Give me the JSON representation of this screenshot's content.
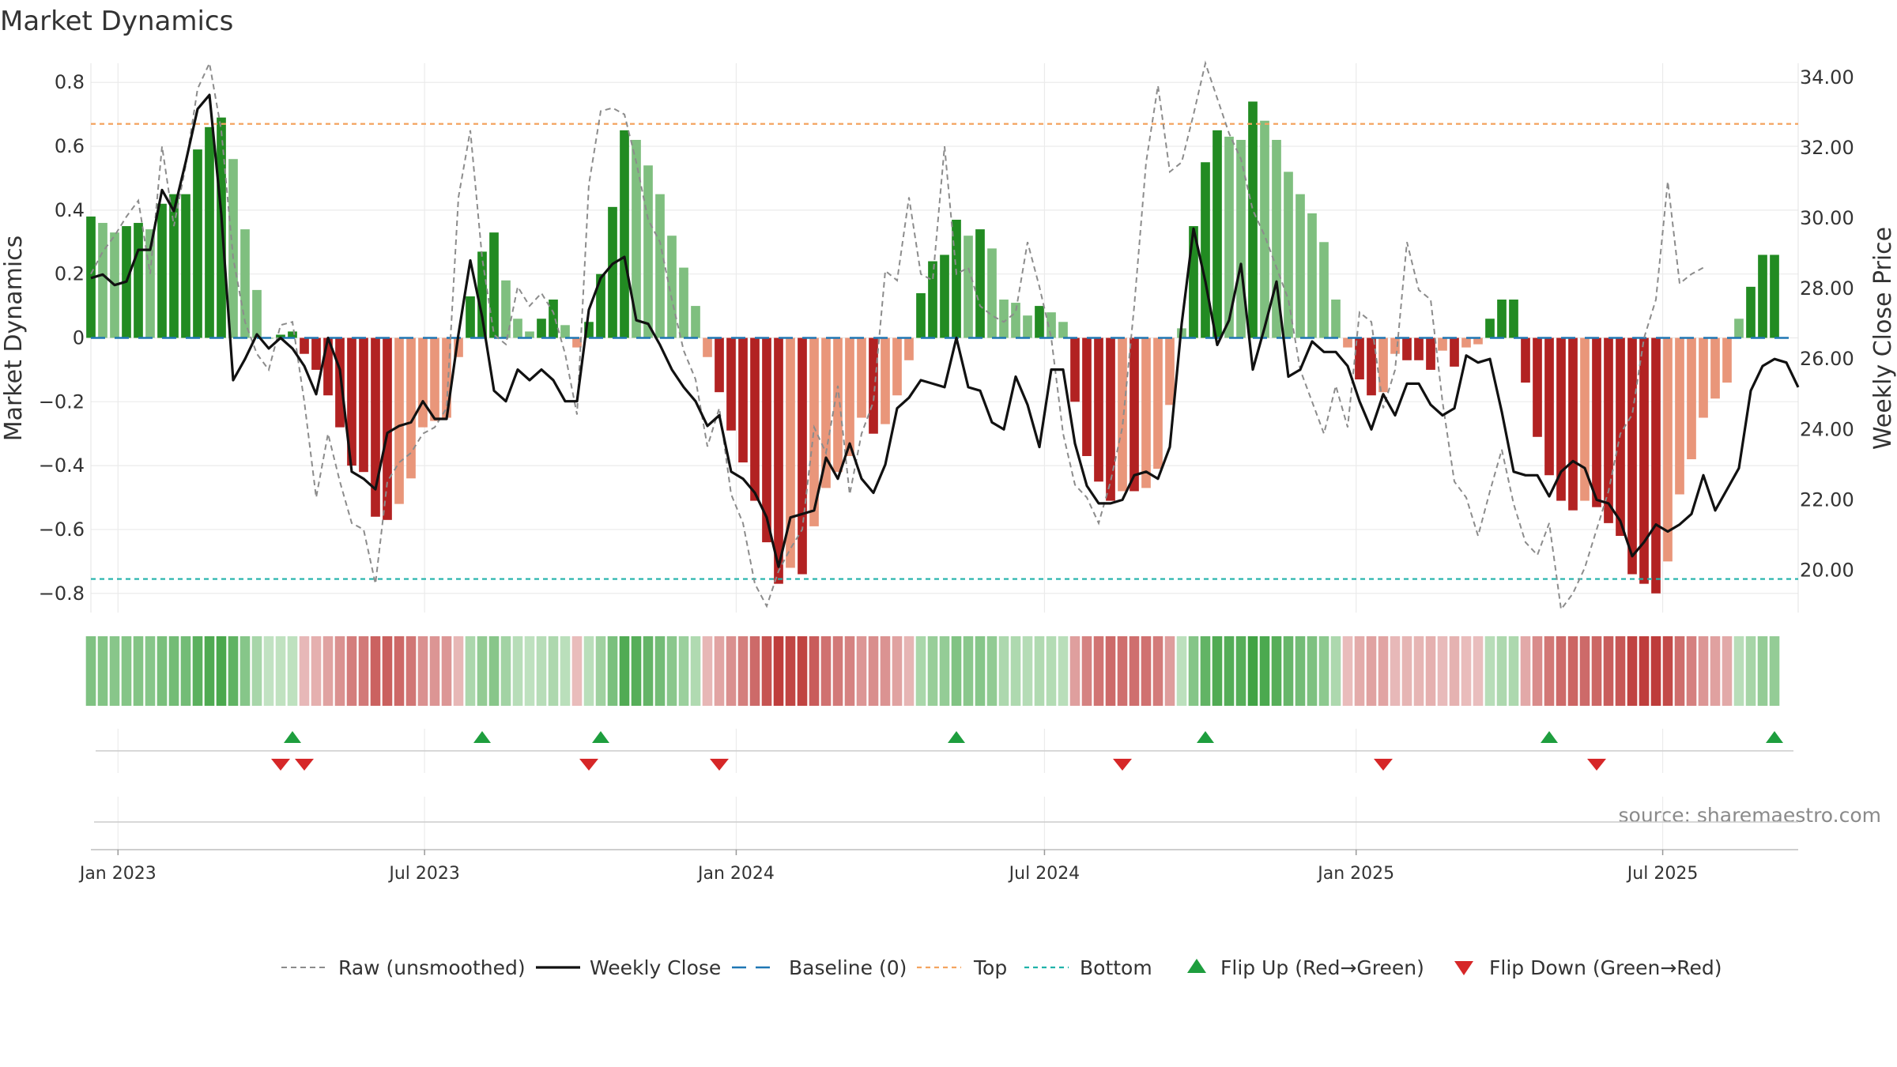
{
  "chart_data": {
    "type": "bar",
    "title": "Market Dynamics",
    "ylabel": "Market Dynamics",
    "y2label": "Weekly Close Price",
    "ylim": [
      -0.86,
      0.86
    ],
    "y2lim": [
      18.8,
      34.4
    ],
    "yticks": [
      {
        "v": 0.8,
        "label": "0.8"
      },
      {
        "v": 0.6,
        "label": "0.6"
      },
      {
        "v": 0.4,
        "label": "0.4"
      },
      {
        "v": 0.2,
        "label": "0.2"
      },
      {
        "v": 0,
        "label": "0"
      },
      {
        "v": -0.2,
        "label": "−0.2"
      },
      {
        "v": -0.4,
        "label": "−0.4"
      },
      {
        "v": -0.6,
        "label": "−0.6"
      },
      {
        "v": -0.8,
        "label": "−0.8"
      }
    ],
    "y2ticks": [
      {
        "v": 34,
        "label": "34.00"
      },
      {
        "v": 32,
        "label": "32.00"
      },
      {
        "v": 30,
        "label": "30.00"
      },
      {
        "v": 28,
        "label": "28.00"
      },
      {
        "v": 26,
        "label": "26.00"
      },
      {
        "v": 24,
        "label": "24.00"
      },
      {
        "v": 22,
        "label": "22.00"
      },
      {
        "v": 20,
        "label": "20.00"
      }
    ],
    "xticks": [
      {
        "date": "2023-01-01",
        "label": "Jan 2023"
      },
      {
        "date": "2023-07-01",
        "label": "Jul 2023"
      },
      {
        "date": "2024-01-01",
        "label": "Jan 2024"
      },
      {
        "date": "2024-07-01",
        "label": "Jul 2024"
      },
      {
        "date": "2025-01-01",
        "label": "Jan 2025"
      },
      {
        "date": "2025-07-01",
        "label": "Jul 2025"
      }
    ],
    "x_start": "2022-12-16",
    "x_end": "2025-09-19",
    "top_level": 0.67,
    "bottom_level": -0.755,
    "grid": true,
    "legend_placement": "bottom",
    "source": "source: sharemaestro.com",
    "colors": {
      "strong_up": "#228b22",
      "weak_up": "#7fbf7f",
      "strong_down": "#b22222",
      "weak_down": "#e9967a",
      "raw": "#8c8c8c",
      "close": "#111111",
      "baseline": "#1f77b4",
      "top": "#f4a460",
      "bottom": "#20b2aa",
      "flip_up": "#1e9e3e",
      "flip_down": "#d62728"
    },
    "series": [
      {
        "name": "Market Dynamics",
        "values": [
          0.38,
          0.36,
          0.33,
          0.35,
          0.36,
          0.34,
          0.42,
          0.45,
          0.45,
          0.59,
          0.66,
          0.69,
          0.56,
          0.34,
          0.15,
          0.0,
          0.01,
          0.02,
          -0.05,
          -0.1,
          -0.18,
          -0.28,
          -0.4,
          -0.42,
          -0.56,
          -0.57,
          -0.52,
          -0.44,
          -0.28,
          -0.26,
          -0.25,
          -0.06,
          0.13,
          0.27,
          0.33,
          0.18,
          0.06,
          0.02,
          0.06,
          0.12,
          0.04,
          -0.03,
          0.05,
          0.2,
          0.41,
          0.65,
          0.62,
          0.54,
          0.45,
          0.32,
          0.22,
          0.1,
          -0.06,
          -0.17,
          -0.29,
          -0.39,
          -0.51,
          -0.64,
          -0.77,
          -0.72,
          -0.74,
          -0.59,
          -0.47,
          -0.42,
          -0.37,
          -0.25,
          -0.3,
          -0.27,
          -0.18,
          -0.07,
          0.14,
          0.24,
          0.26,
          0.37,
          0.32,
          0.34,
          0.28,
          0.12,
          0.11,
          0.07,
          0.1,
          0.08,
          0.05,
          -0.2,
          -0.37,
          -0.45,
          -0.51,
          -0.48,
          -0.48,
          -0.47,
          -0.41,
          -0.21,
          0.03,
          0.35,
          0.55,
          0.65,
          0.63,
          0.62,
          0.74,
          0.68,
          0.62,
          0.52,
          0.45,
          0.39,
          0.3,
          0.12,
          -0.03,
          -0.13,
          -0.18,
          -0.17,
          -0.05,
          -0.07,
          -0.07,
          -0.1,
          -0.04,
          -0.09,
          -0.03,
          -0.02,
          0.06,
          0.12,
          0.12,
          -0.14,
          -0.31,
          -0.43,
          -0.51,
          -0.54,
          -0.51,
          -0.53,
          -0.58,
          -0.62,
          -0.74,
          -0.77,
          -0.8,
          -0.7,
          -0.49,
          -0.38,
          -0.25,
          -0.19,
          -0.14,
          0.06,
          0.16,
          0.26,
          0.26
        ]
      },
      {
        "name": "Raw (unsmoothed)",
        "values": [
          0.2,
          0.27,
          0.32,
          0.38,
          0.43,
          0.2,
          0.6,
          0.35,
          0.54,
          0.78,
          0.86,
          0.65,
          0.25,
          0.05,
          -0.05,
          -0.1,
          0.04,
          0.05,
          -0.2,
          -0.5,
          -0.3,
          -0.45,
          -0.58,
          -0.6,
          -0.77,
          -0.45,
          -0.39,
          -0.36,
          -0.3,
          -0.28,
          -0.22,
          0.44,
          0.65,
          0.25,
          0.01,
          -0.02,
          0.16,
          0.1,
          0.14,
          0.08,
          -0.05,
          -0.24,
          0.48,
          0.71,
          0.72,
          0.7,
          0.55,
          0.37,
          0.3,
          0.12,
          -0.04,
          -0.13,
          -0.34,
          -0.22,
          -0.49,
          -0.58,
          -0.77,
          -0.84,
          -0.73,
          -0.66,
          -0.6,
          -0.28,
          -0.36,
          -0.15,
          -0.49,
          -0.3,
          -0.2,
          0.21,
          0.18,
          0.44,
          0.2,
          0.18,
          0.6,
          0.2,
          0.22,
          0.1,
          0.07,
          0.05,
          0.08,
          0.3,
          0.16,
          0.0,
          -0.3,
          -0.46,
          -0.5,
          -0.58,
          -0.45,
          -0.28,
          0.1,
          0.55,
          0.79,
          0.52,
          0.55,
          0.7,
          0.86,
          0.75,
          0.64,
          0.56,
          0.4,
          0.32,
          0.22,
          0.12,
          -0.1,
          -0.2,
          -0.3,
          -0.15,
          -0.28,
          0.08,
          0.05,
          -0.22,
          -0.1,
          0.3,
          0.15,
          0.12,
          -0.2,
          -0.45,
          -0.5,
          -0.62,
          -0.48,
          -0.35,
          -0.52,
          -0.64,
          -0.68,
          -0.58,
          -0.85,
          -0.8,
          -0.72,
          -0.6,
          -0.48,
          -0.3,
          -0.24,
          0.0,
          0.12,
          0.49,
          0.17,
          0.2,
          0.22
        ]
      },
      {
        "name": "Weekly Close",
        "values": [
          28.3,
          28.4,
          28.1,
          28.2,
          29.1,
          29.1,
          30.8,
          30.2,
          31.6,
          33.1,
          33.5,
          30.1,
          25.4,
          26.0,
          26.7,
          26.3,
          26.6,
          26.3,
          25.8,
          25.0,
          26.6,
          25.7,
          22.8,
          22.6,
          22.3,
          23.9,
          24.1,
          24.2,
          24.8,
          24.3,
          24.3,
          26.7,
          28.8,
          27.2,
          25.1,
          24.8,
          25.7,
          25.4,
          25.7,
          25.4,
          24.8,
          24.8,
          27.4,
          28.3,
          28.7,
          28.9,
          27.1,
          27.0,
          26.4,
          25.7,
          25.2,
          24.8,
          24.1,
          24.4,
          22.8,
          22.6,
          22.2,
          21.5,
          20.1,
          21.5,
          21.6,
          21.7,
          23.2,
          22.6,
          23.6,
          22.6,
          22.2,
          23.0,
          24.6,
          24.9,
          25.4,
          25.3,
          25.2,
          26.6,
          25.2,
          25.1,
          24.2,
          24.0,
          25.5,
          24.7,
          23.5,
          25.7,
          25.7,
          23.6,
          22.4,
          21.9,
          21.9,
          22.0,
          22.7,
          22.8,
          22.6,
          23.5,
          27.0,
          29.7,
          28.2,
          26.4,
          27.1,
          28.7,
          25.7,
          26.9,
          28.2,
          25.5,
          25.7,
          26.5,
          26.2,
          26.2,
          25.8,
          24.8,
          24.0,
          25.0,
          24.4,
          25.3,
          25.3,
          24.7,
          24.4,
          24.6,
          26.1,
          25.9,
          26.0,
          24.5,
          22.8,
          22.7,
          22.7,
          22.1,
          22.8,
          23.1,
          22.9,
          22.0,
          21.9,
          21.4,
          20.4,
          20.8,
          21.3,
          21.1,
          21.3,
          21.6,
          22.7,
          21.7,
          22.3,
          22.9,
          25.1,
          25.8,
          26.0,
          25.9,
          25.2
        ]
      }
    ],
    "flips_up": [
      "2023-04-14",
      "2023-08-04",
      "2023-10-13",
      "2024-05-10",
      "2024-10-04",
      "2025-04-25",
      "2025-09-05"
    ],
    "flips_down": [
      "2023-04-07",
      "2023-04-21",
      "2023-10-06",
      "2023-12-22",
      "2024-08-16",
      "2025-01-17",
      "2025-05-23"
    ]
  },
  "legend": [
    {
      "key": "raw",
      "label": "Raw (unsmoothed)"
    },
    {
      "key": "close",
      "label": "Weekly Close"
    },
    {
      "key": "baseline",
      "label": "Baseline (0)"
    },
    {
      "key": "top",
      "label": "Top"
    },
    {
      "key": "bottom",
      "label": "Bottom"
    },
    {
      "key": "flip_up",
      "label": "Flip Up (Red→Green)"
    },
    {
      "key": "flip_down",
      "label": "Flip Down (Green→Red)"
    }
  ]
}
